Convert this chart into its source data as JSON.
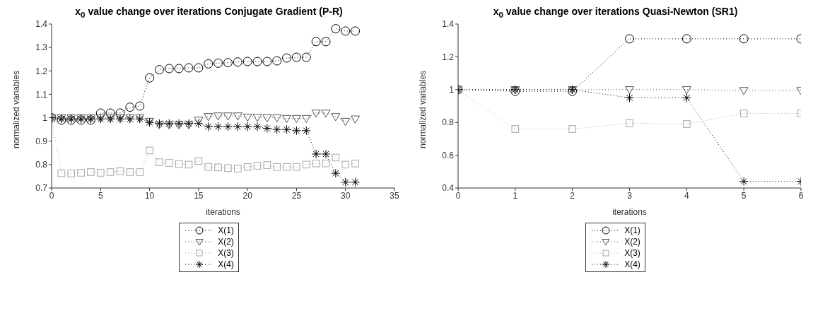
{
  "chart_data": [
    {
      "type": "line",
      "title": "x$_{0}$ value change over iterations Conjugate Gradient (P-R)",
      "xlabel": "iterations",
      "ylabel": "normalized variables",
      "x": [
        0,
        1,
        2,
        3,
        4,
        5,
        6,
        7,
        8,
        9,
        10,
        11,
        12,
        13,
        14,
        15,
        16,
        17,
        18,
        19,
        20,
        21,
        22,
        23,
        24,
        25,
        26,
        27,
        28,
        29,
        30,
        31
      ],
      "series": [
        {
          "name": "X(1)",
          "color": "#000000",
          "marker": "circle",
          "values": [
            1.0,
            0.99,
            0.99,
            0.99,
            0.99,
            1.02,
            1.02,
            1.02,
            1.045,
            1.05,
            1.17,
            1.205,
            1.21,
            1.21,
            1.213,
            1.213,
            1.23,
            1.233,
            1.235,
            1.238,
            1.24,
            1.24,
            1.24,
            1.243,
            1.255,
            1.258,
            1.258,
            1.325,
            1.325,
            1.38,
            1.37,
            1.37
          ]
        },
        {
          "name": "X(2)",
          "color": "#555555",
          "marker": "triangle",
          "values": [
            1.0,
            1.0,
            1.0,
            1.0,
            1.0,
            1.0,
            1.0,
            1.0,
            1.0,
            1.0,
            0.985,
            0.97,
            0.97,
            0.97,
            0.97,
            0.99,
            1.005,
            1.008,
            1.008,
            1.008,
            1.003,
            1.002,
            1.0,
            1.0,
            0.997,
            0.997,
            0.997,
            1.02,
            1.02,
            1.005,
            0.985,
            0.995
          ]
        },
        {
          "name": "X(3)",
          "color": "#a6a6a6",
          "marker": "square",
          "values": [
            1.0,
            0.763,
            0.762,
            0.765,
            0.768,
            0.765,
            0.768,
            0.772,
            0.768,
            0.768,
            0.86,
            0.81,
            0.807,
            0.803,
            0.8,
            0.815,
            0.79,
            0.788,
            0.785,
            0.783,
            0.79,
            0.795,
            0.798,
            0.79,
            0.79,
            0.79,
            0.8,
            0.805,
            0.805,
            0.83,
            0.8,
            0.805
          ]
        },
        {
          "name": "X(4)",
          "color": "#000000",
          "marker": "cross",
          "values": [
            1.0,
            0.995,
            0.995,
            0.995,
            0.995,
            0.995,
            0.995,
            0.995,
            0.995,
            0.995,
            0.98,
            0.975,
            0.975,
            0.975,
            0.975,
            0.975,
            0.962,
            0.962,
            0.962,
            0.962,
            0.962,
            0.962,
            0.955,
            0.95,
            0.95,
            0.945,
            0.945,
            0.845,
            0.845,
            0.763,
            0.725,
            0.725
          ]
        }
      ],
      "xlim": [
        0,
        35
      ],
      "xticks": [
        0,
        5,
        10,
        15,
        20,
        25,
        30,
        35
      ],
      "ylim": [
        0.7,
        1.4
      ],
      "yticks": [
        0.7,
        0.8,
        0.9,
        1,
        1.1,
        1.2,
        1.3,
        1.4
      ],
      "grid": false,
      "legend": "bottom",
      "line_style": "dotted"
    },
    {
      "type": "line",
      "title": "x$_{0}$ value change over iterations Quasi-Newton (SR1)",
      "xlabel": "iterations",
      "ylabel": "normalized variables",
      "x": [
        0,
        1,
        2,
        3,
        4,
        5,
        6
      ],
      "series": [
        {
          "name": "X(1)",
          "color": "#000000",
          "marker": "circle",
          "values": [
            1.0,
            0.99,
            0.99,
            1.31,
            1.31,
            1.31,
            1.31
          ]
        },
        {
          "name": "X(2)",
          "color": "#555555",
          "marker": "triangle",
          "values": [
            1.0,
            1.0,
            1.0,
            1.0,
            1.0,
            0.995,
            0.995
          ]
        },
        {
          "name": "X(3)",
          "color": "#a6a6a6",
          "marker": "square",
          "values": [
            1.0,
            0.76,
            0.76,
            0.795,
            0.79,
            0.855,
            0.855
          ]
        },
        {
          "name": "X(4)",
          "color": "#000000",
          "marker": "cross",
          "values": [
            1.0,
            1.0,
            1.0,
            0.95,
            0.95,
            0.44,
            0.44
          ]
        }
      ],
      "xlim": [
        0,
        6
      ],
      "xticks": [
        0,
        1,
        2,
        3,
        4,
        5,
        6
      ],
      "ylim": [
        0.4,
        1.4
      ],
      "yticks": [
        0.4,
        0.6,
        0.8,
        1,
        1.2,
        1.4
      ],
      "grid": false,
      "legend": "bottom",
      "line_style": "dotted"
    }
  ]
}
